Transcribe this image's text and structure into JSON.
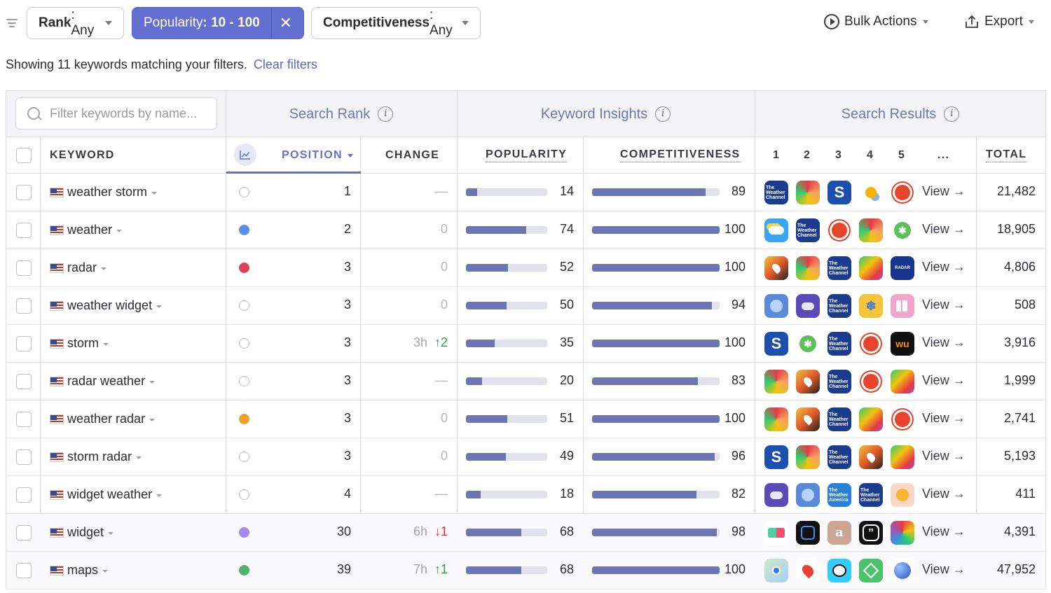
{
  "toolbar": {
    "rank_key": "Rank",
    "rank_val": ": Any",
    "popularity_key": "Popularity",
    "popularity_val": ": 10 - 100",
    "clear_popularity": "✕",
    "comp_key": "Competitiveness",
    "comp_val": ": Any",
    "bulk_actions": "Bulk Actions",
    "export": "Export"
  },
  "summary": {
    "text": "Showing 11 keywords matching your filters.",
    "clear_link": "Clear filters"
  },
  "table": {
    "search_placeholder": "Filter keywords by name...",
    "groups": {
      "search_rank": "Search Rank",
      "keyword_insights": "Keyword Insights",
      "search_results": "Search Results"
    },
    "columns": {
      "keyword": "KEYWORD",
      "position": "POSITION",
      "change": "CHANGE",
      "popularity": "POPULARITY",
      "competitiveness": "COMPETITIVENESS",
      "r1": "1",
      "r2": "2",
      "r3": "3",
      "r4": "4",
      "r5": "5",
      "more": "...",
      "total": "TOTAL"
    },
    "view_label": "View →",
    "rows": [
      {
        "keyword": "weather storm",
        "dot": "empty",
        "dot_color": "",
        "position": "1",
        "change_time": "",
        "change": "—",
        "change_type": "dash",
        "popularity": 14,
        "competitiveness": 89,
        "apps": [
          "twc",
          "radar",
          "storm",
          "sun-cloud",
          "red-sun"
        ],
        "total": "21,482"
      },
      {
        "keyword": "weather",
        "dot": "filled",
        "dot_color": "#5c8ef2",
        "position": "2",
        "change_time": "",
        "change": "0",
        "change_type": "zero",
        "popularity": 74,
        "competitiveness": 100,
        "apps": [
          "cloud",
          "twc",
          "red-sun",
          "radar",
          "leaf"
        ],
        "total": "18,905"
      },
      {
        "keyword": "radar",
        "dot": "filled",
        "dot_color": "#e0405a",
        "position": "3",
        "change_time": "",
        "change": "0",
        "change_type": "zero",
        "popularity": 52,
        "competitiveness": 100,
        "apps": [
          "map-pin",
          "radar",
          "twc",
          "radar2",
          "radar-blue"
        ],
        "total": "4,806"
      },
      {
        "keyword": "weather widget",
        "dot": "empty",
        "dot_color": "",
        "position": "3",
        "change_time": "",
        "change": "0",
        "change_type": "zero",
        "popularity": 50,
        "competitiveness": 94,
        "apps": [
          "planet",
          "purple-cloud",
          "twc",
          "snow",
          "pink-grid"
        ],
        "total": "508"
      },
      {
        "keyword": "storm",
        "dot": "empty",
        "dot_color": "",
        "position": "3",
        "change_time": "3h",
        "change": "↑2",
        "change_type": "up",
        "popularity": 35,
        "competitiveness": 100,
        "apps": [
          "storm",
          "leaf",
          "twc",
          "red-sun",
          "wu"
        ],
        "total": "3,916"
      },
      {
        "keyword": "radar weather",
        "dot": "empty",
        "dot_color": "",
        "position": "3",
        "change_time": "",
        "change": "—",
        "change_type": "dash",
        "popularity": 20,
        "competitiveness": 83,
        "apps": [
          "radar",
          "map-pin",
          "twc",
          "red-sun",
          "radar2"
        ],
        "total": "1,999"
      },
      {
        "keyword": "weather radar",
        "dot": "filled",
        "dot_color": "#f0a030",
        "position": "3",
        "change_time": "",
        "change": "0",
        "change_type": "zero",
        "popularity": 51,
        "competitiveness": 100,
        "apps": [
          "radar",
          "map-pin",
          "twc",
          "radar2",
          "red-sun"
        ],
        "total": "2,741"
      },
      {
        "keyword": "storm radar",
        "dot": "empty",
        "dot_color": "",
        "position": "3",
        "change_time": "",
        "change": "0",
        "change_type": "zero",
        "popularity": 49,
        "competitiveness": 96,
        "apps": [
          "storm",
          "radar",
          "twc",
          "map-pin",
          "radar2"
        ],
        "total": "5,193"
      },
      {
        "keyword": "widget weather",
        "dot": "empty",
        "dot_color": "",
        "position": "4",
        "change_time": "",
        "change": "—",
        "change_type": "dash",
        "popularity": 18,
        "competitiveness": 82,
        "apps": [
          "purple-cloud",
          "planet",
          "twc-america",
          "twc",
          "sun-face"
        ],
        "total": "411"
      },
      {
        "keyword": "widget",
        "dot": "filled",
        "dot_color": "#a48af0",
        "position": "30",
        "change_time": "6h",
        "change": "↓1",
        "change_type": "down",
        "popularity": 68,
        "competitiveness": 98,
        "apps": [
          "widgets",
          "square",
          "letter-a",
          "quote",
          "rainbow"
        ],
        "total": "4,391"
      },
      {
        "keyword": "maps",
        "dot": "filled",
        "dot_color": "#52b36e",
        "position": "39",
        "change_time": "7h",
        "change": "↑1",
        "change_type": "up",
        "popularity": 68,
        "competitiveness": 100,
        "apps": [
          "apple-maps",
          "google-maps",
          "waze",
          "green-app",
          "blue-globe"
        ],
        "total": "47,952"
      }
    ]
  }
}
